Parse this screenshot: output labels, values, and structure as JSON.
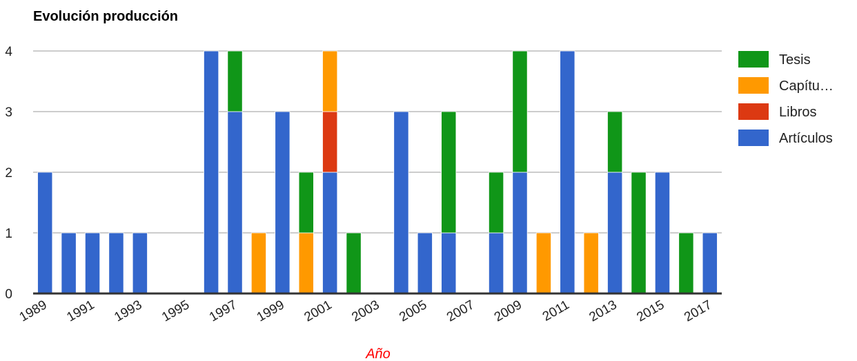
{
  "chart_data": {
    "type": "bar",
    "stacked": true,
    "title": "Evolución producción",
    "xlabel": "Año",
    "ylabel": "",
    "ylim": [
      0,
      4
    ],
    "yticks": [
      0,
      1,
      2,
      3,
      4
    ],
    "grid": true,
    "legend_position": "right",
    "categories": [
      "1989",
      "1990",
      "1991",
      "1992",
      "1993",
      "1994",
      "1995",
      "1996",
      "1997",
      "1998",
      "1999",
      "2000",
      "2001",
      "2002",
      "2003",
      "2004",
      "2005",
      "2006",
      "2007",
      "2008",
      "2009",
      "2010",
      "2011",
      "2012",
      "2013",
      "2014",
      "2015",
      "2016",
      "2017"
    ],
    "xtick_labels": [
      "1989",
      "1991",
      "1993",
      "1995",
      "1997",
      "1999",
      "2001",
      "2003",
      "2005",
      "2007",
      "2009",
      "2011",
      "2013",
      "2015",
      "2017"
    ],
    "series": [
      {
        "name": "Artículos",
        "color": "#3366cc",
        "values": [
          2,
          1,
          1,
          1,
          1,
          0,
          0,
          4,
          3,
          0,
          3,
          0,
          2,
          0,
          0,
          3,
          1,
          1,
          0,
          1,
          2,
          0,
          4,
          0,
          2,
          0,
          2,
          0,
          1
        ]
      },
      {
        "name": "Libros",
        "color": "#dc3912",
        "values": [
          0,
          0,
          0,
          0,
          0,
          0,
          0,
          0,
          0,
          0,
          0,
          0,
          1,
          0,
          0,
          0,
          0,
          0,
          0,
          0,
          0,
          0,
          0,
          0,
          0,
          0,
          0,
          0,
          0
        ]
      },
      {
        "name": "Capítu…",
        "color": "#ff9900",
        "values": [
          0,
          0,
          0,
          0,
          0,
          0,
          0,
          0,
          0,
          1,
          0,
          1,
          1,
          0,
          0,
          0,
          0,
          0,
          0,
          0,
          0,
          1,
          0,
          1,
          0,
          0,
          0,
          0,
          0
        ]
      },
      {
        "name": "Tesis",
        "color": "#109618",
        "values": [
          0,
          0,
          0,
          0,
          0,
          0,
          0,
          0,
          1,
          0,
          0,
          1,
          0,
          1,
          0,
          0,
          0,
          2,
          0,
          1,
          2,
          0,
          0,
          0,
          1,
          2,
          0,
          1,
          0
        ]
      }
    ],
    "legend_order": [
      "Tesis",
      "Capítu…",
      "Libros",
      "Artículos"
    ]
  }
}
